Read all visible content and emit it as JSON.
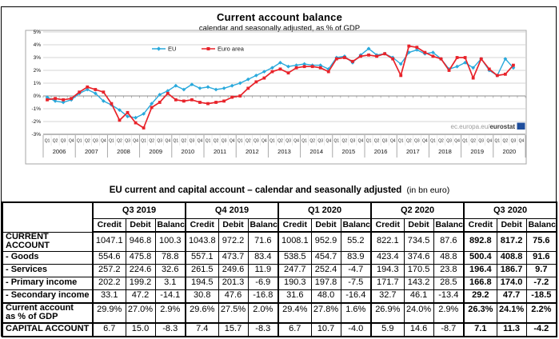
{
  "chart_data": {
    "type": "line",
    "title": "Current account balance",
    "subtitle": "calendar and seasonally adjusted, as % of GDP",
    "ylabel": "% of GDP",
    "ylim": [
      -3,
      5
    ],
    "ytick_step": 1,
    "ytick_suffix": "%",
    "grid": true,
    "legend_position": "inside-top-center",
    "x_start": "Q1 2006",
    "x_end": "Q3 2020",
    "years": [
      2006,
      2007,
      2008,
      2009,
      2010,
      2011,
      2012,
      2013,
      2014,
      2015,
      2016,
      2017,
      2018,
      2019,
      2020
    ],
    "quarters": [
      "Q1",
      "Q2",
      "Q3",
      "Q4"
    ],
    "n_slots": 60,
    "series": [
      {
        "name": "EU",
        "color": "#29A9DC",
        "marker": "diamond",
        "values": [
          -0.1,
          -0.4,
          -0.5,
          -0.3,
          0.2,
          0.5,
          0.2,
          -0.4,
          -0.7,
          -1.1,
          -1.6,
          -1.7,
          -1.4,
          -0.6,
          0.1,
          0.4,
          0.8,
          0.5,
          0.9,
          0.6,
          0.7,
          0.5,
          0.6,
          0.8,
          1.0,
          1.3,
          1.6,
          1.9,
          2.2,
          2.6,
          2.3,
          2.4,
          2.5,
          2.4,
          2.4,
          2.1,
          3.0,
          3.1,
          2.6,
          3.2,
          3.7,
          3.2,
          3.3,
          3.0,
          2.5,
          3.4,
          3.6,
          3.3,
          3.4,
          2.9,
          2.1,
          2.3,
          2.6,
          2.2,
          2.9,
          2.0,
          1.6,
          2.9,
          2.2
        ]
      },
      {
        "name": "Euro area",
        "color": "#E8232A",
        "marker": "square",
        "values": [
          -0.3,
          -0.2,
          -0.3,
          -0.2,
          0.3,
          0.7,
          0.5,
          0.3,
          -0.6,
          -1.9,
          -1.3,
          -2.1,
          -2.5,
          -0.9,
          -0.5,
          0.2,
          -0.3,
          -0.4,
          -0.3,
          -0.5,
          -0.6,
          -0.5,
          -0.4,
          -0.1,
          0.0,
          0.6,
          1.1,
          1.4,
          1.9,
          2.1,
          1.8,
          2.2,
          2.3,
          2.3,
          2.2,
          1.9,
          2.9,
          3.0,
          2.7,
          3.1,
          3.2,
          3.1,
          3.3,
          2.9,
          1.6,
          3.9,
          3.8,
          3.4,
          3.1,
          2.9,
          2.0,
          3.0,
          3.0,
          1.4,
          2.9,
          2.1,
          1.6,
          1.7,
          2.4
        ]
      }
    ],
    "watermark": {
      "prefix": "ec.europa.eu/",
      "bold": "eurostat",
      "logo_color": "#1F4E9C"
    }
  },
  "table": {
    "title": "EU current and capital account – calendar and seasonally adjusted",
    "title_suffix": "(in bn euro)",
    "col_groups": [
      "Q3 2019",
      "Q4 2019",
      "Q1 2020",
      "Q2 2020",
      "Q3 2020"
    ],
    "sub_cols": [
      "Credit",
      "Debit",
      "Balance"
    ],
    "bold_group_index": 4,
    "rows": [
      {
        "label": "CURRENT ACCOUNT",
        "cls": "",
        "values": [
          "1047.1",
          "946.8",
          "100.3",
          "1043.8",
          "972.2",
          "71.6",
          "1008.1",
          "952.9",
          "55.2",
          "822.1",
          "734.5",
          "87.6",
          "892.8",
          "817.2",
          "75.6"
        ]
      },
      {
        "label": "- Goods",
        "cls": "",
        "values": [
          "554.6",
          "475.8",
          "78.8",
          "557.1",
          "473.7",
          "83.4",
          "538.5",
          "454.7",
          "83.9",
          "423.4",
          "374.6",
          "48.8",
          "500.4",
          "408.8",
          "91.6"
        ]
      },
      {
        "label": "- Services",
        "cls": "",
        "values": [
          "257.2",
          "224.6",
          "32.6",
          "261.5",
          "249.6",
          "11.9",
          "247.7",
          "252.4",
          "-4.7",
          "194.3",
          "170.5",
          "23.8",
          "196.4",
          "186.7",
          "9.7"
        ]
      },
      {
        "label": "- Primary income",
        "cls": "",
        "values": [
          "202.2",
          "199.2",
          "3.1",
          "194.5",
          "201.3",
          "-6.9",
          "190.3",
          "197.8",
          "-7.5",
          "171.7",
          "143.2",
          "28.5",
          "166.8",
          "174.0",
          "-7.2"
        ]
      },
      {
        "label": "- Secondary income",
        "cls": "",
        "values": [
          "33.1",
          "47.2",
          "-14.1",
          "30.8",
          "47.6",
          "-16.8",
          "31.6",
          "48.0",
          "-16.4",
          "32.7",
          "46.1",
          "-13.4",
          "29.2",
          "47.7",
          "-18.5"
        ]
      },
      {
        "label": "Current account\nas % of GDP",
        "cls": "rpct thickTop",
        "values": [
          "29.9%",
          "27.0%",
          "2.9%",
          "29.6%",
          "27.5%",
          "2.0%",
          "29.4%",
          "27.8%",
          "1.6%",
          "26.9%",
          "24.0%",
          "2.9%",
          "26.3%",
          "24.1%",
          "2.2%"
        ]
      },
      {
        "label": "CAPITAL ACCOUNT",
        "cls": "thickTop",
        "values": [
          "6.7",
          "15.0",
          "-8.3",
          "7.4",
          "15.7",
          "-8.3",
          "6.7",
          "10.7",
          "-4.0",
          "5.9",
          "14.6",
          "-8.7",
          "7.1",
          "11.3",
          "-4.2"
        ]
      }
    ]
  }
}
